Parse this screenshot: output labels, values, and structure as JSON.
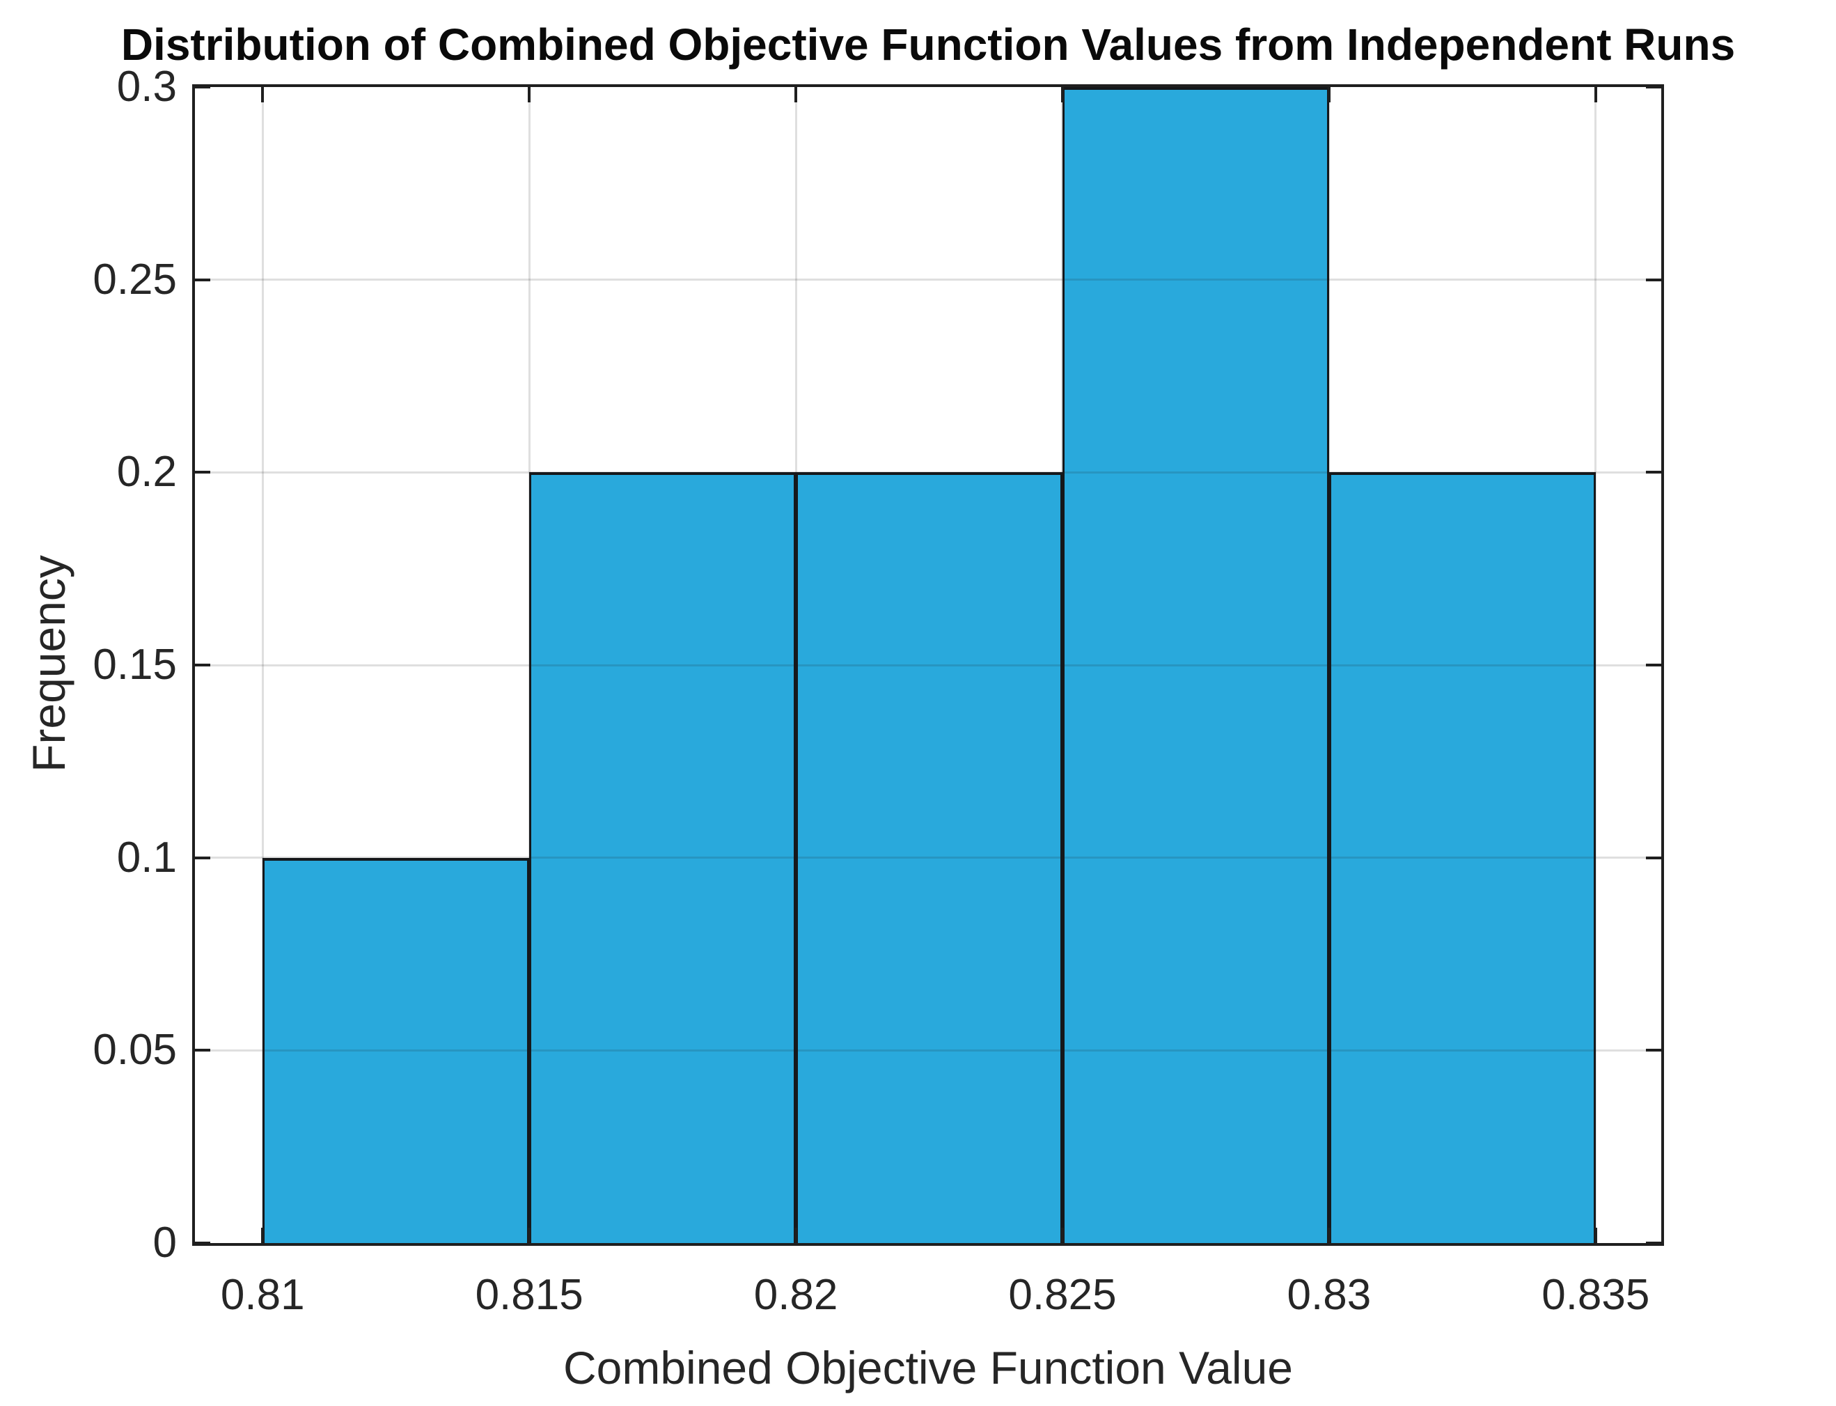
{
  "chart_data": {
    "type": "bar",
    "subtype": "histogram",
    "title": "Distribution of Combined Objective Function Values from Independent Runs",
    "xlabel": "Combined Objective Function Value",
    "ylabel": "Frequency",
    "bin_edges": [
      0.81,
      0.815,
      0.82,
      0.825,
      0.83,
      0.835
    ],
    "frequencies": [
      0.1,
      0.2,
      0.2,
      0.3,
      0.2
    ],
    "xlim": [
      0.80873,
      0.83623
    ],
    "ylim": [
      0,
      0.3
    ],
    "xtick_values": [
      0.81,
      0.815,
      0.82,
      0.825,
      0.83,
      0.835
    ],
    "xtick_labels": [
      "0.81",
      "0.815",
      "0.82",
      "0.825",
      "0.83",
      "0.835"
    ],
    "ytick_values": [
      0,
      0.05,
      0.1,
      0.15,
      0.2,
      0.25,
      0.3
    ],
    "ytick_labels": [
      "0",
      "0.05",
      "0.1",
      "0.15",
      "0.2",
      "0.25",
      "0.3"
    ],
    "grid": true,
    "legend": null,
    "colors": {
      "bar_face": "#29A9DC",
      "bar_edge": "#15181B",
      "grid_overlay": "rgba(30,30,30,0.14)",
      "axis_line": "#1F1F1F",
      "tick_text": "#262626",
      "title_text": "#0A0A0A"
    }
  }
}
